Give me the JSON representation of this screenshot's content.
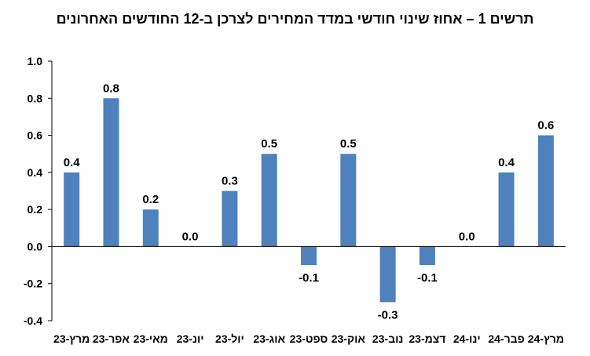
{
  "chart_data": {
    "type": "bar",
    "title": "תרשים 1 – אחוז שינוי חודשי במדד המחירים לצרכן ב-12 החודשים האחרונים",
    "categories": [
      "מרץ-23",
      "אפר-23",
      "מאי-23",
      "יונ-23",
      "יול-23",
      "אוג-23",
      "ספט-23",
      "אוק-23",
      "נוב-23",
      "דצמ-23",
      "ינו-24",
      "פבר-24",
      "מרץ-24"
    ],
    "values": [
      0.4,
      0.8,
      0.2,
      0.0,
      0.3,
      0.5,
      -0.1,
      0.5,
      -0.3,
      -0.1,
      0.0,
      0.4,
      0.6
    ],
    "data_labels": [
      "0.4",
      "0.8",
      "0.2",
      "0.0",
      "0.3",
      "0.5",
      "-0.1",
      "0.5",
      "-0.3",
      "-0.1",
      "0.0",
      "0.4",
      "0.6"
    ],
    "yticks": [
      "1.0",
      "0.8",
      "0.6",
      "0.4",
      "0.2",
      "0.0",
      "-0.2",
      "-0.4"
    ],
    "ylim": [
      -0.4,
      1.0
    ],
    "grid": false,
    "bar_color": "#4F81BD"
  }
}
